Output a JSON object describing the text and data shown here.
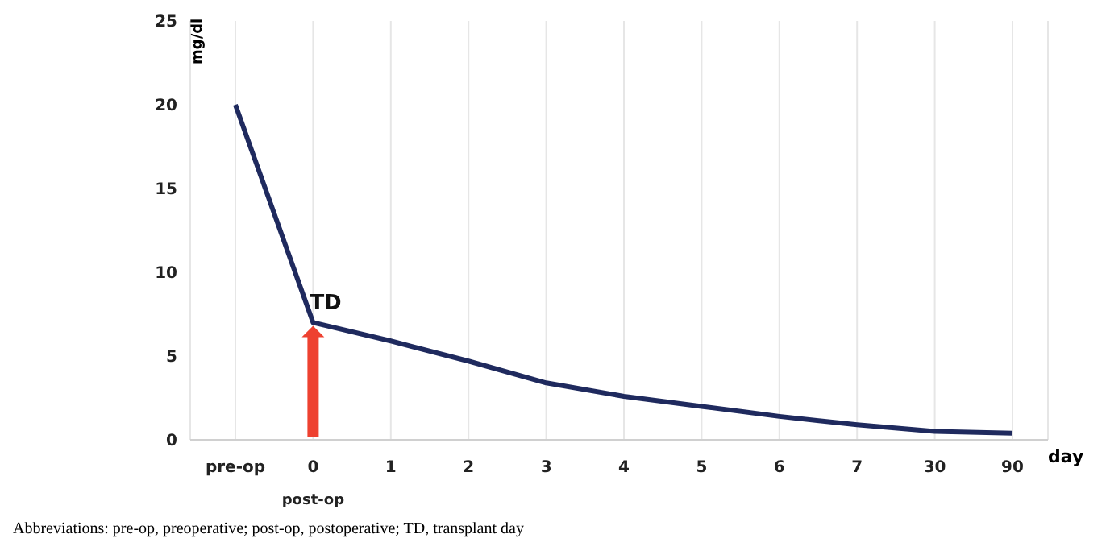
{
  "chart_data": {
    "type": "line",
    "ylabel": "mg/dl",
    "xlabel": "day",
    "categories": [
      "pre-op",
      "0\npost-op",
      "1",
      "2",
      "3",
      "4",
      "5",
      "6",
      "7",
      "30",
      "90"
    ],
    "series": [
      {
        "color": "#1f2a5e",
        "values": [
          20,
          7.0,
          5.9,
          4.7,
          3.4,
          2.6,
          2.0,
          1.4,
          0.9,
          0.5,
          0.4
        ]
      }
    ],
    "ylim": [
      0,
      25
    ],
    "yticks": [
      0,
      5,
      10,
      15,
      20,
      25
    ],
    "grid": "x",
    "marker": "none",
    "line_style": "solid",
    "annotations": [
      {
        "text": "TD",
        "x": "0\npost-op",
        "y": 7.0
      },
      "Abbreviations: pre-op, preoperative; post-op, postoperative; TD, transplant day"
    ]
  }
}
